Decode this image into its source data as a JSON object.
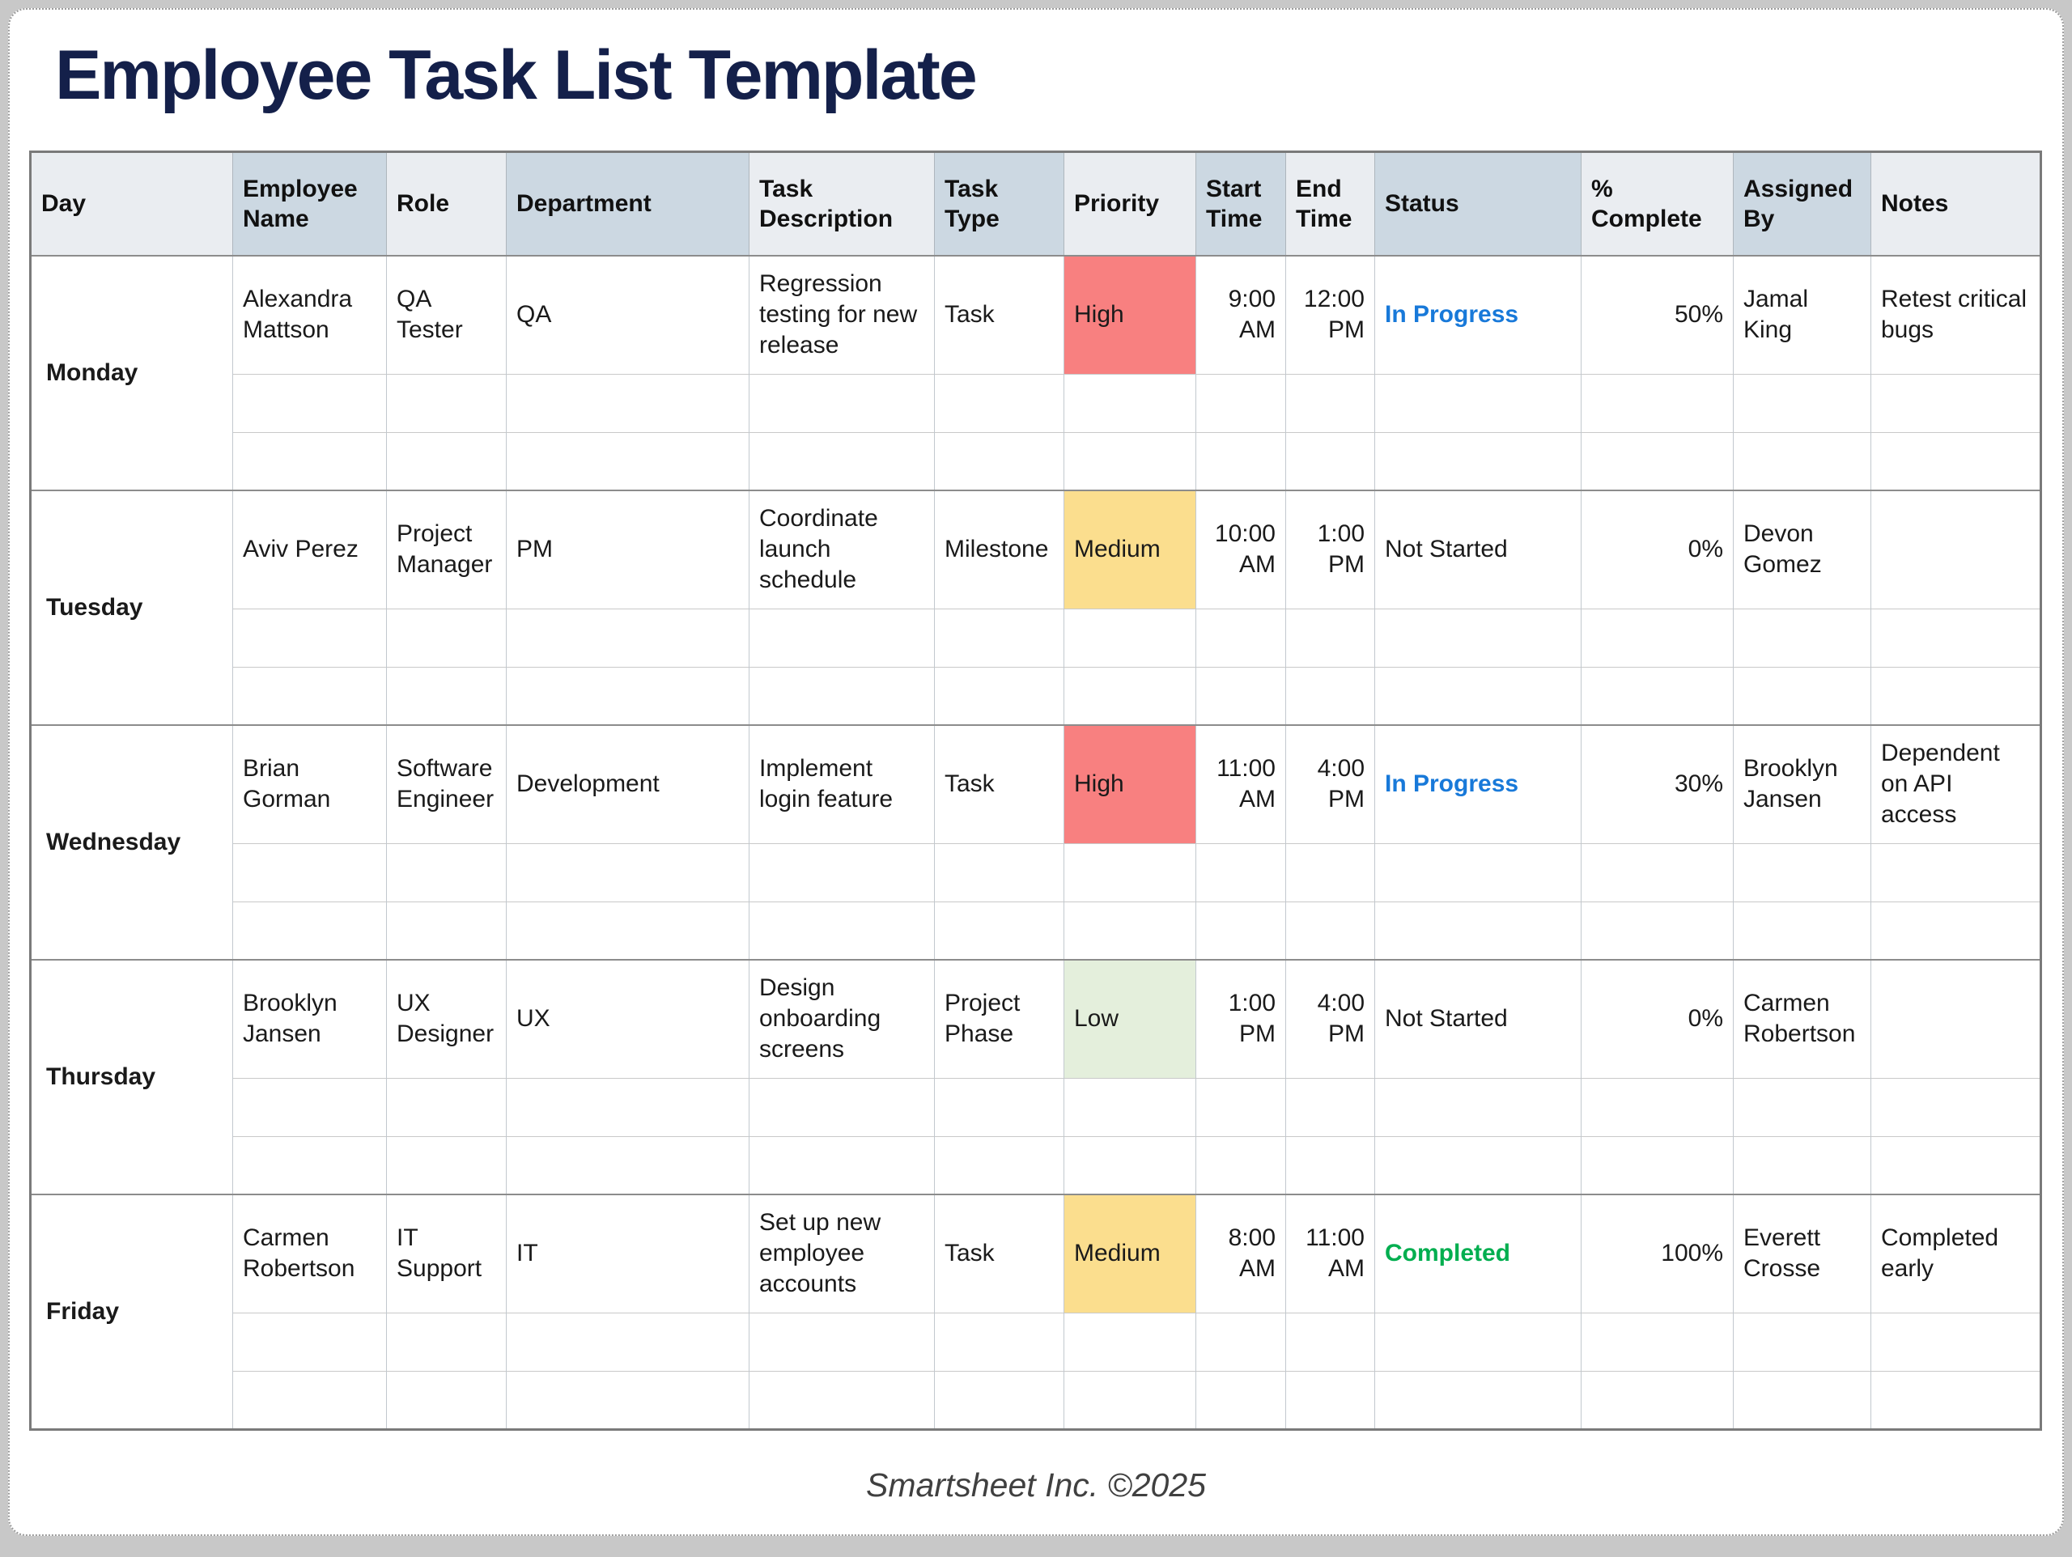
{
  "title": "Employee Task List Template",
  "footer": "Smartsheet Inc. ©2025",
  "colors": {
    "title_navy": "#14204A",
    "header_light": "#EAEDF1",
    "header_dark": "#CCD8E2",
    "priority_high": "#F88080",
    "priority_medium": "#FBDE8E",
    "priority_low": "#E4EFDC",
    "status_in_progress": "#1879D9",
    "status_completed": "#00AE4F",
    "status_default": "#1A1A1A"
  },
  "table": {
    "columns": [
      "Day",
      "Employee Name",
      "Role",
      "Department",
      "Task Description",
      "Task Type",
      "Priority",
      "Start Time",
      "End Time",
      "Status",
      "% Complete",
      "Assigned By",
      "Notes"
    ],
    "groups": [
      {
        "day": "Monday",
        "task": {
          "employee_name": "Alexandra Mattson",
          "role": "QA Tester",
          "department": "QA",
          "task_description": "Regression testing for new release",
          "task_type": "Task",
          "priority": {
            "label": "High",
            "bg": "#F88080"
          },
          "start_time": "9:00 AM",
          "end_time": "12:00 PM",
          "status": {
            "label": "In Progress",
            "color": "#1879D9",
            "weight": "700"
          },
          "percent_complete": "50%",
          "assigned_by": "Jamal King",
          "notes": "Retest critical bugs"
        }
      },
      {
        "day": "Tuesday",
        "task": {
          "employee_name": "Aviv Perez",
          "role": "Project Manager",
          "department": "PM",
          "task_description": "Coordinate launch schedule",
          "task_type": "Milestone",
          "priority": {
            "label": "Medium",
            "bg": "#FBDE8E"
          },
          "start_time": "10:00 AM",
          "end_time": "1:00 PM",
          "status": {
            "label": "Not Started",
            "color": "#1A1A1A",
            "weight": "400"
          },
          "percent_complete": "0%",
          "assigned_by": "Devon Gomez",
          "notes": ""
        }
      },
      {
        "day": "Wednesday",
        "task": {
          "employee_name": "Brian Gorman",
          "role": "Software Engineer",
          "department": "Development",
          "task_description": "Implement login feature",
          "task_type": "Task",
          "priority": {
            "label": "High",
            "bg": "#F88080"
          },
          "start_time": "11:00 AM",
          "end_time": "4:00 PM",
          "status": {
            "label": "In Progress",
            "color": "#1879D9",
            "weight": "700"
          },
          "percent_complete": "30%",
          "assigned_by": "Brooklyn Jansen",
          "notes": "Dependent on API access"
        }
      },
      {
        "day": "Thursday",
        "task": {
          "employee_name": "Brooklyn Jansen",
          "role": "UX Designer",
          "department": "UX",
          "task_description": "Design onboarding screens",
          "task_type": "Project Phase",
          "priority": {
            "label": "Low",
            "bg": "#E4EFDC"
          },
          "start_time": "1:00 PM",
          "end_time": "4:00 PM",
          "status": {
            "label": "Not Started",
            "color": "#1A1A1A",
            "weight": "400"
          },
          "percent_complete": "0%",
          "assigned_by": "Carmen Robertson",
          "notes": ""
        }
      },
      {
        "day": "Friday",
        "task": {
          "employee_name": "Carmen Robertson",
          "role": "IT Support",
          "department": "IT",
          "task_description": "Set up new employee accounts",
          "task_type": "Task",
          "priority": {
            "label": "Medium",
            "bg": "#FBDE8E"
          },
          "start_time": "8:00 AM",
          "end_time": "11:00 AM",
          "status": {
            "label": "Completed",
            "color": "#00AE4F",
            "weight": "700"
          },
          "percent_complete": "100%",
          "assigned_by": "Everett Crosse",
          "notes": "Completed early"
        }
      }
    ]
  }
}
